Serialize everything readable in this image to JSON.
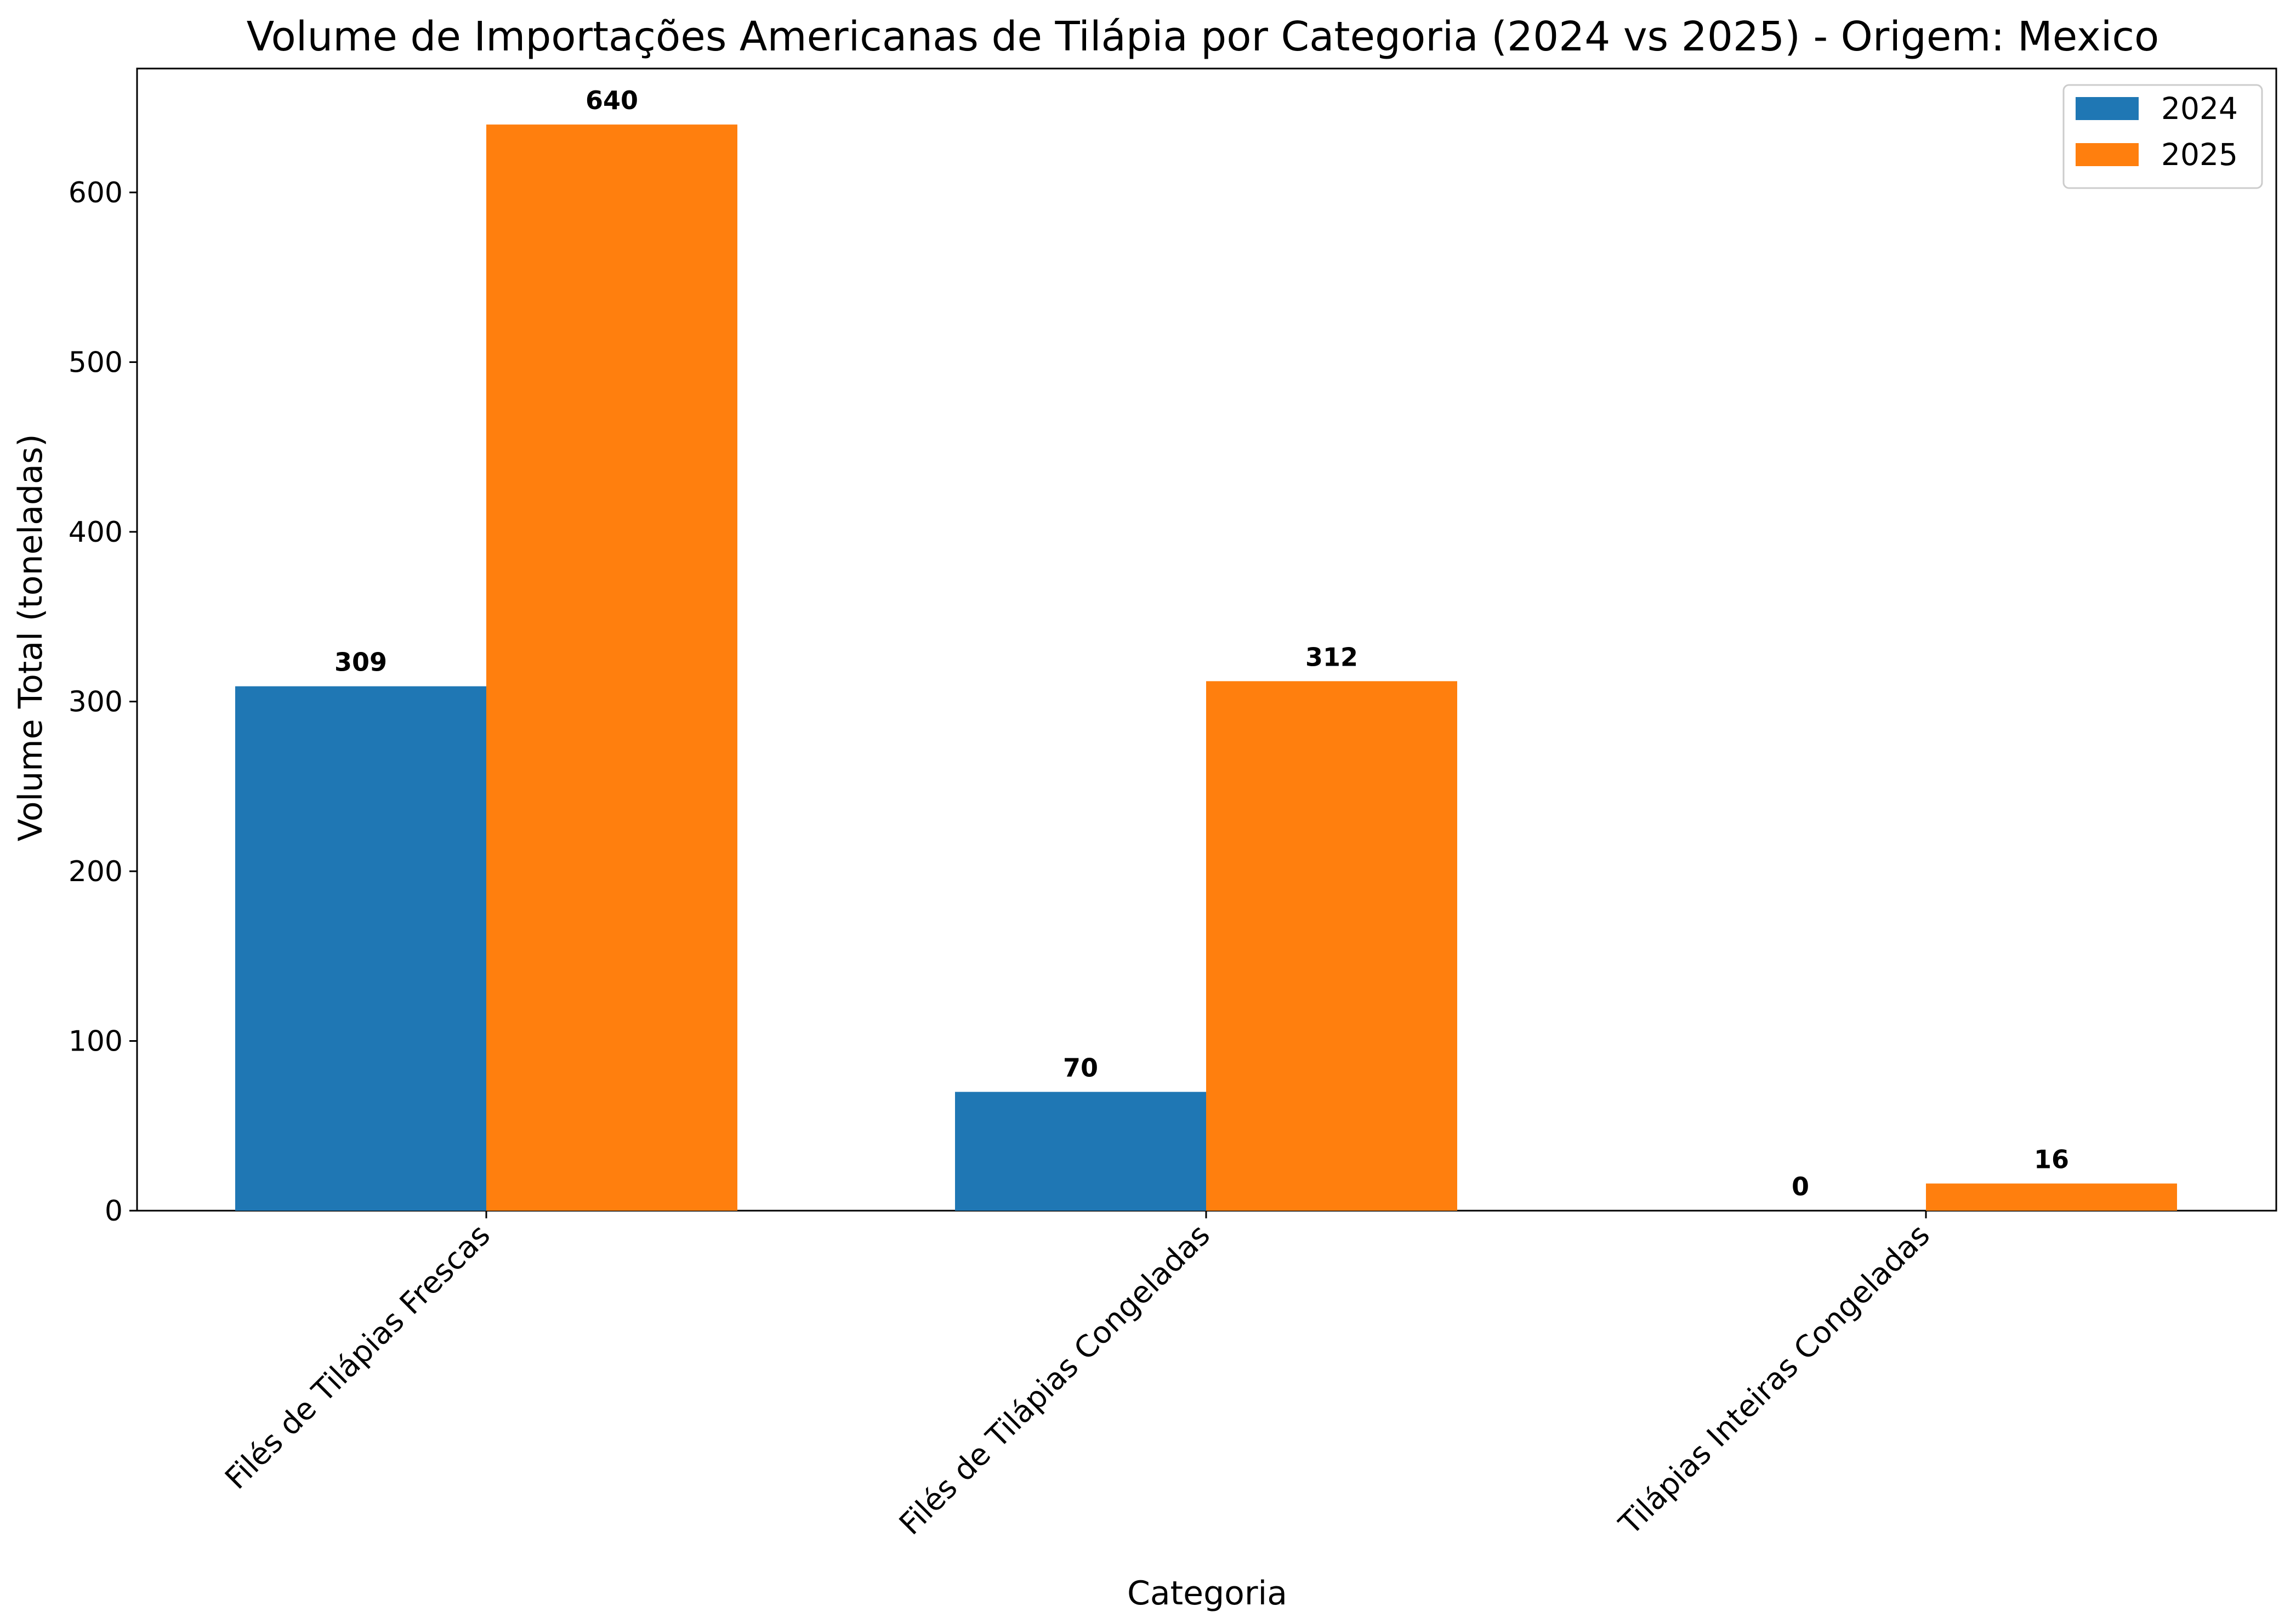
{
  "chart_data": {
    "type": "bar",
    "title": "Volume de Importações Americanas de Tilápia por Categoria (2024 vs 2025) - Origem: Mexico",
    "xlabel": "Categoria",
    "ylabel": "Volume Total (toneladas)",
    "categories": [
      "Filés de Tilápias Frescas",
      "Filés de Tilápias Congeladas",
      "Tilápias Inteiras Congeladas"
    ],
    "series": [
      {
        "name": "2024",
        "values": [
          309,
          70,
          0
        ],
        "labels": [
          "309",
          "70",
          "0"
        ],
        "color": "#1f77b4"
      },
      {
        "name": "2025",
        "values": [
          640,
          312,
          16
        ],
        "labels": [
          "640",
          "312",
          "16"
        ],
        "color": "#ff7f0e"
      }
    ],
    "ylim": [
      0,
      673
    ],
    "yticks": [
      0,
      100,
      200,
      300,
      400,
      500,
      600
    ],
    "ytick_labels": [
      "0",
      "100",
      "200",
      "300",
      "400",
      "500",
      "600"
    ],
    "grid": false,
    "legend_position": "top-right"
  }
}
